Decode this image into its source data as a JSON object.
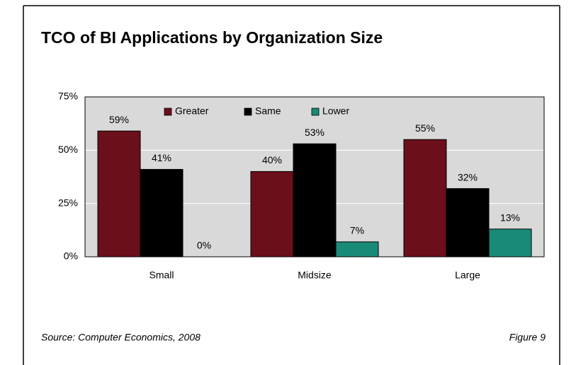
{
  "chart_data": {
    "type": "bar",
    "title": "TCO of BI Applications by Organization Size",
    "categories": [
      "Small",
      "Midsize",
      "Large"
    ],
    "series": [
      {
        "name": "Greater",
        "color": "#6b0f1a",
        "values": [
          59,
          40,
          55
        ],
        "value_labels": [
          "59%",
          "40%",
          "55%"
        ]
      },
      {
        "name": "Same",
        "color": "#000000",
        "values": [
          41,
          53,
          32
        ],
        "value_labels": [
          "41%",
          "53%",
          "32%"
        ]
      },
      {
        "name": "Lower",
        "color": "#1a8a78",
        "values": [
          0,
          7,
          13
        ],
        "value_labels": [
          "0%",
          "7%",
          "13%"
        ]
      }
    ],
    "ylim": [
      0,
      75
    ],
    "yticks": [
      {
        "value": 0,
        "label": "0%"
      },
      {
        "value": 25,
        "label": "25%"
      },
      {
        "value": 50,
        "label": "50%"
      },
      {
        "value": 75,
        "label": "75%"
      }
    ],
    "grid": true,
    "legend": "top",
    "source": "Source: Computer Economics, 2008",
    "figure": "Figure 9"
  }
}
